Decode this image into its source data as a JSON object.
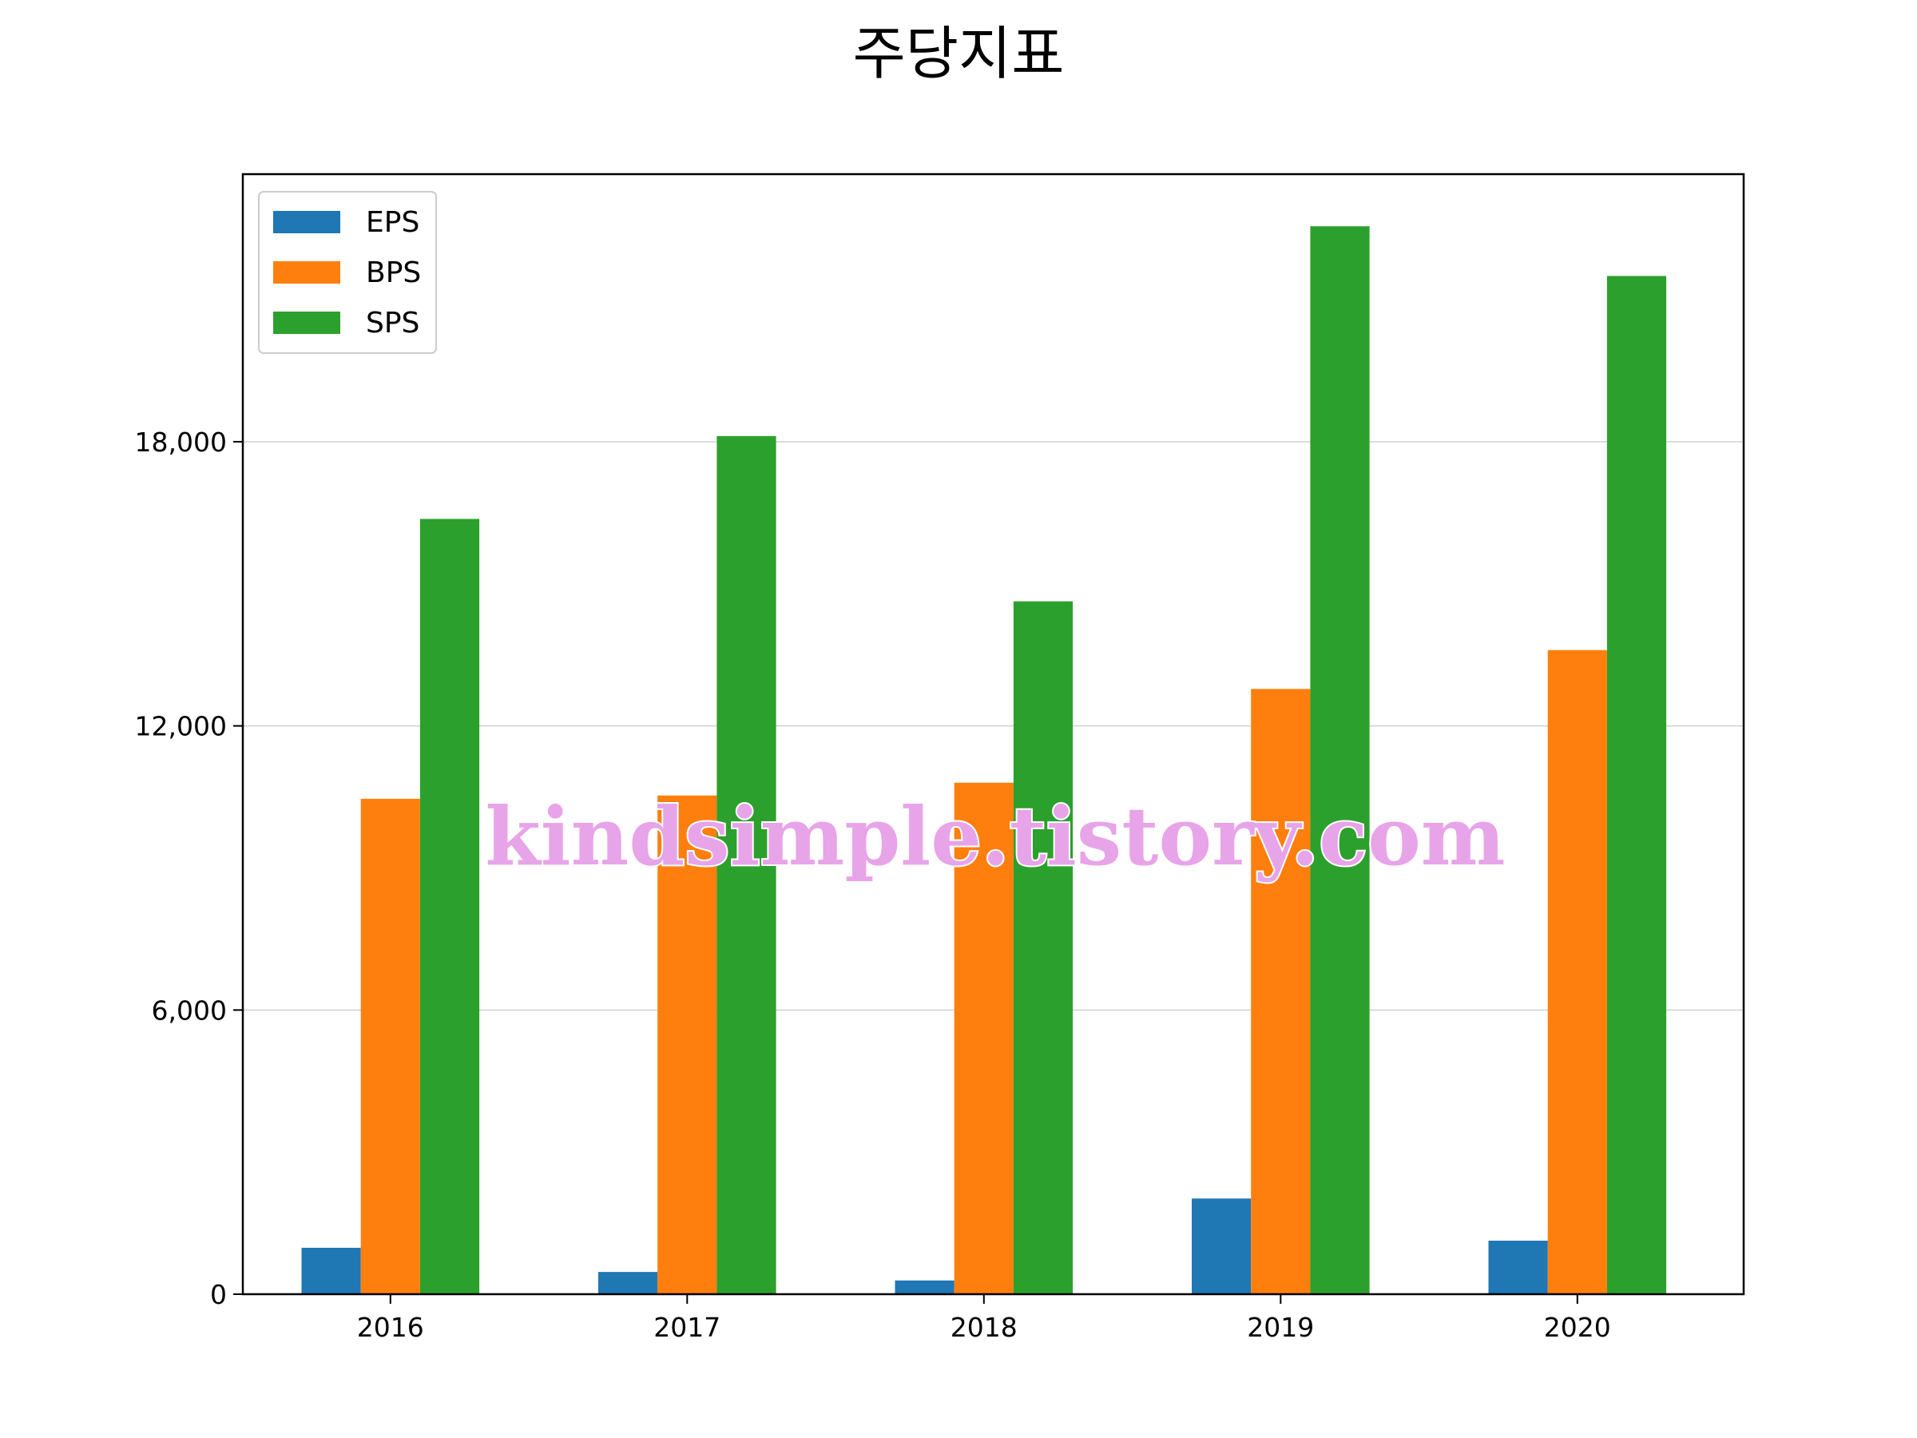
{
  "chart_data": {
    "type": "bar",
    "title": "주당지표",
    "xlabel": "",
    "ylabel": "",
    "categories": [
      "2016",
      "2017",
      "2018",
      "2019",
      "2020"
    ],
    "series": [
      {
        "name": "EPS",
        "color": "#1f77b4",
        "values": [
          980,
          470,
          290,
          2020,
          1130
        ]
      },
      {
        "name": "BPS",
        "color": "#ff7f0e",
        "values": [
          10460,
          10530,
          10800,
          12780,
          13600
        ]
      },
      {
        "name": "SPS",
        "color": "#2ca02c",
        "values": [
          16370,
          18120,
          14630,
          22550,
          21500
        ]
      }
    ],
    "ylim": [
      0,
      23650
    ],
    "yticks": [
      0,
      6000,
      12000,
      18000
    ],
    "ytick_labels": [
      "0",
      "6,000",
      "12,000",
      "18,000"
    ],
    "grid": "y",
    "legend_position": "top-left"
  },
  "watermark": "kindsimple.tistory.com"
}
